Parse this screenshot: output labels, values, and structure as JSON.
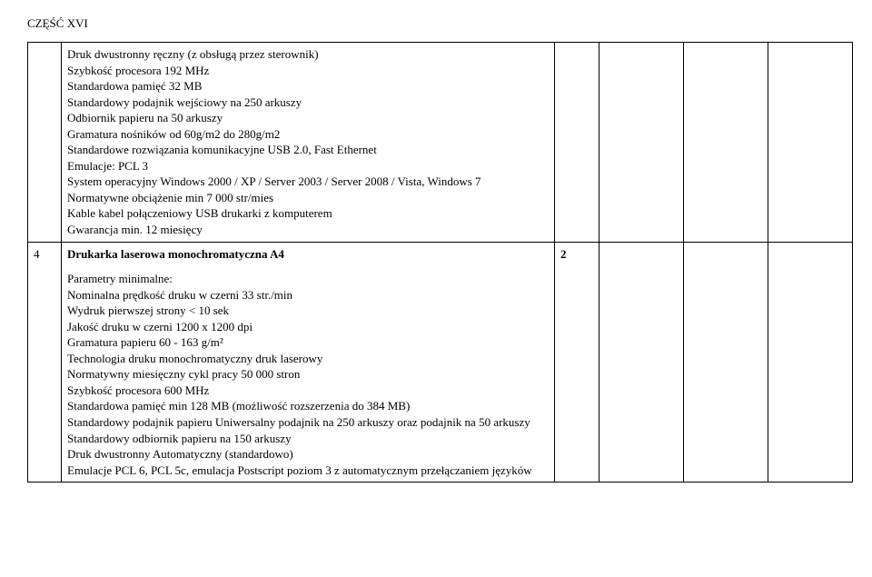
{
  "header": {
    "title": "CZĘŚĆ XVI"
  },
  "rows": [
    {
      "idx": "",
      "qty": "",
      "lines": [
        "Druk dwustronny ręczny (z obsługą przez sterownik)",
        "Szybkość procesora 192 MHz",
        "Standardowa pamięć  32 MB",
        "Standardowy podajnik wejściowy  na 250 arkuszy",
        "Odbiornik papieru na 50 arkuszy",
        "Gramatura nośników od 60g/m2 do 280g/m2",
        "Standardowe rozwiązania komunikacyjne USB 2.0, Fast Ethernet",
        "Emulacje: PCL 3",
        "System operacyjny  Windows 2000 / XP / Server 2003 / Server 2008 / Vista, Windows 7",
        "Normatywne obciążenie min 7 000 str/mies",
        "Kable kabel połączeniowy USB drukarki z komputerem",
        "Gwarancja     min. 12 miesięcy"
      ]
    },
    {
      "idx": "4",
      "qty": "2",
      "title": "Drukarka laserowa monochromatyczna A4",
      "subtitle": "Parametry minimalne:",
      "lines": [
        "Nominalna prędkość druku w czerni  33 str./min",
        "Wydruk pierwszej strony       < 10 sek",
        "Jakość druku w czerni  1200 x 1200 dpi",
        "Gramatura papieru 60 - 163 g/m²",
        "Technologia druku     monochromatyczny druk laserowy",
        "Normatywny miesięczny cykl pracy 50 000 stron",
        "Szybkość procesora   600 MHz",
        "Standardowa pamięć  min 128 MB (możliwość rozszerzenia do 384 MB)",
        "Standardowy podajnik papieru Uniwersalny podajnik na 250 arkuszy oraz podajnik na 50 arkuszy",
        "Standardowy odbiornik papieru na 150 arkuszy",
        "Druk dwustronny Automatyczny (standardowo)",
        "Emulacje       PCL 6, PCL 5c,  emulacja Postscript poziom 3 z automatycznym przełączaniem języków"
      ]
    }
  ]
}
